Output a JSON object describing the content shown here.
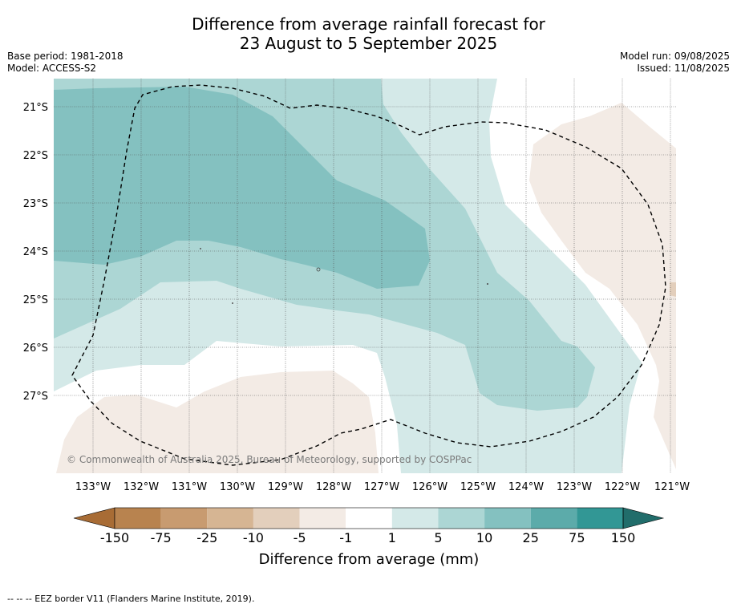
{
  "title_line1": "Difference from average rainfall forecast for",
  "title_line2": "23 August to 5 September 2025",
  "base_period": "Base period: 1981-2018",
  "model": "Model: ACCESS-S2",
  "model_run": "Model run: 09/08/2025",
  "issued": "Issued: 11/08/2025",
  "copyright": "© Commonwealth of Australia 2025, Bureau of Meteorology, supported by COSPPac",
  "longitude_labels": [
    "133°W",
    "132°W",
    "131°W",
    "130°W",
    "129°W",
    "128°W",
    "127°W",
    "126°W",
    "125°W",
    "124°W",
    "123°W",
    "122°W",
    "121°W"
  ],
  "latitude_labels": [
    "21°S",
    "22°S",
    "23°S",
    "24°S",
    "25°S",
    "26°S",
    "27°S"
  ],
  "colorbar": {
    "title": "Difference from average (mm)",
    "tick_labels": [
      "-150",
      "-75",
      "-25",
      "-10",
      "-5",
      "-1",
      "1",
      "5",
      "10",
      "25",
      "75",
      "150"
    ],
    "colors": [
      "#a86c35",
      "#b8834f",
      "#c89b70",
      "#d6b593",
      "#e3cfbc",
      "#f3ebe5",
      "#ffffff",
      "#d4e9e8",
      "#acd6d4",
      "#84c1c0",
      "#5cabaa",
      "#329795",
      "#216d6b"
    ]
  },
  "eez_note": "--  --  -- EEZ border V11 (Flanders Marine Institute, 2019)."
}
